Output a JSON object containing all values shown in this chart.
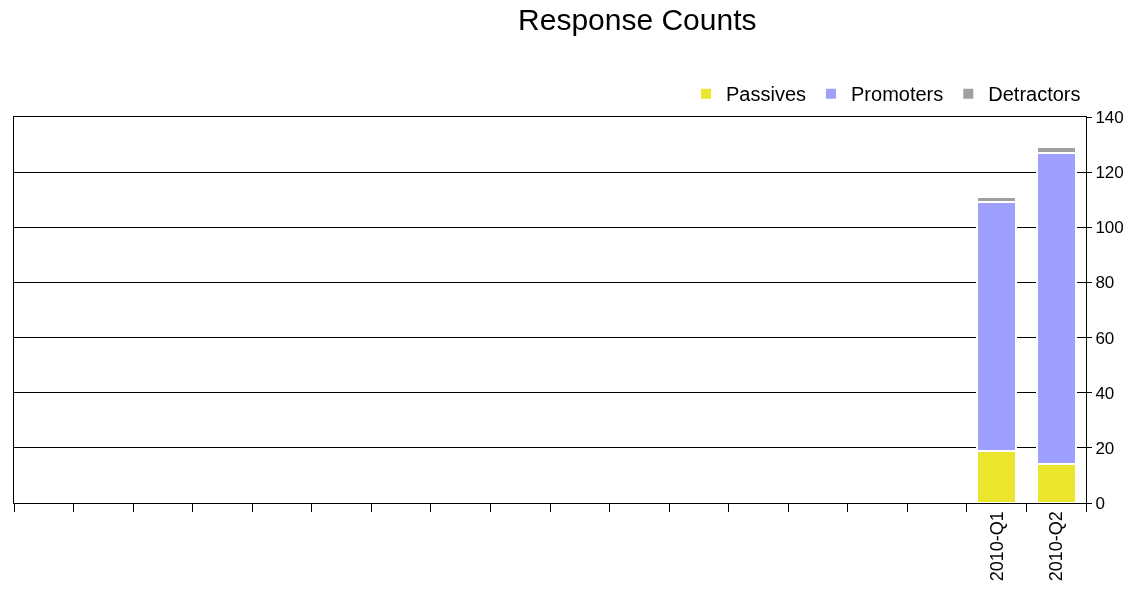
{
  "chart_data": {
    "type": "bar",
    "title": "Response Counts",
    "stacked": true,
    "categories": [
      null,
      null,
      null,
      null,
      null,
      null,
      null,
      null,
      null,
      null,
      null,
      null,
      null,
      null,
      null,
      null,
      "2010-Q1",
      "2010-Q2"
    ],
    "series": [
      {
        "name": "Passives",
        "color": "#ebe52e",
        "values": [
          null,
          null,
          null,
          null,
          null,
          null,
          null,
          null,
          null,
          null,
          null,
          null,
          null,
          null,
          null,
          null,
          19,
          14
        ]
      },
      {
        "name": "Promoters",
        "color": "#9f9ffe",
        "values": [
          null,
          null,
          null,
          null,
          null,
          null,
          null,
          null,
          null,
          null,
          null,
          null,
          null,
          null,
          null,
          null,
          90,
          113
        ]
      },
      {
        "name": "Detractors",
        "color": "#a0a0a0",
        "values": [
          null,
          null,
          null,
          null,
          null,
          null,
          null,
          null,
          null,
          null,
          null,
          null,
          null,
          null,
          null,
          null,
          2,
          2
        ]
      }
    ],
    "ylim": [
      0,
      140
    ],
    "yticks": [
      0,
      20,
      40,
      60,
      80,
      100,
      120,
      140
    ],
    "grid": "y",
    "legend": "top right"
  }
}
